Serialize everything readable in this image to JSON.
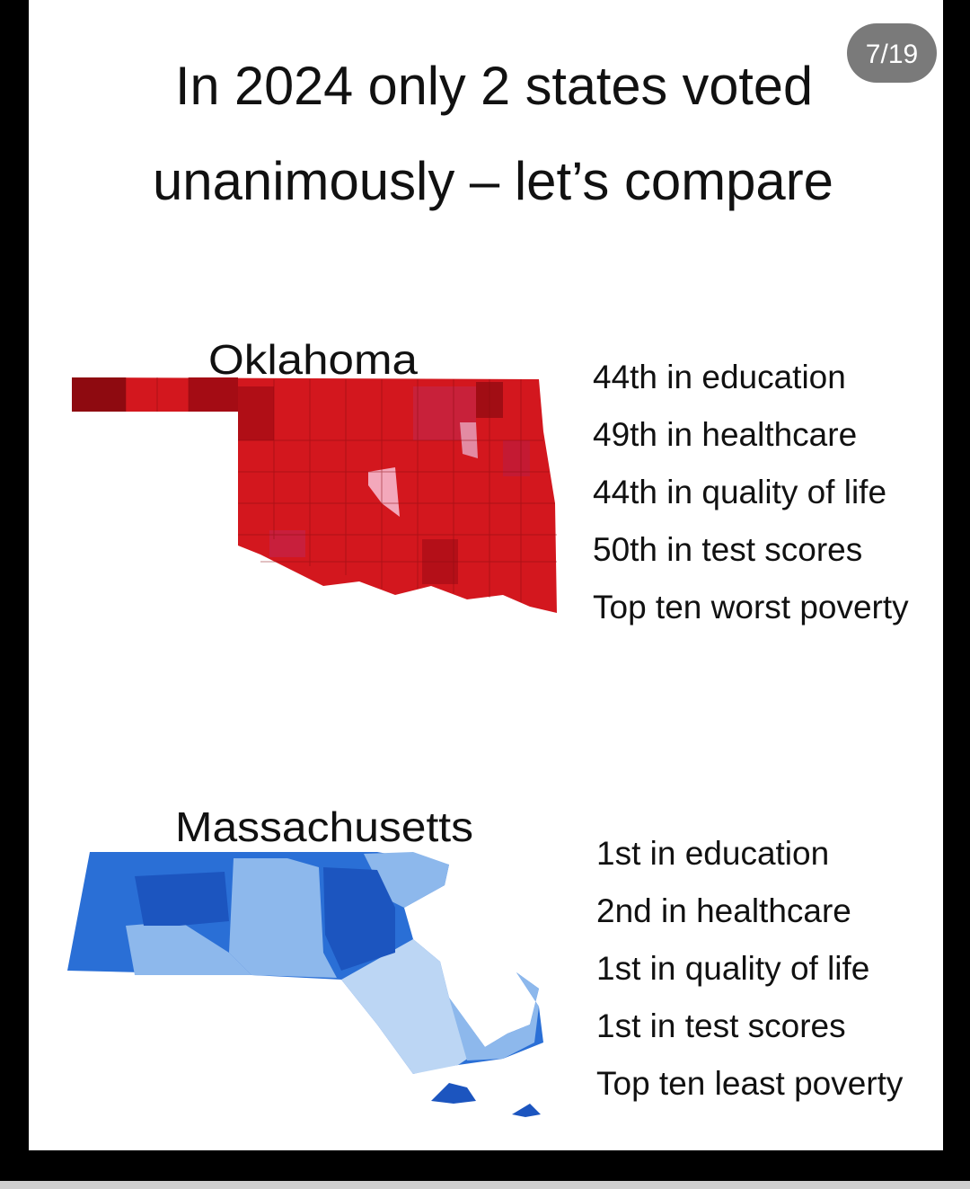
{
  "badge": "7/19",
  "title": {
    "line1": "In 2024 only 2 states voted",
    "line2": "unanimously – let’s compare"
  },
  "states": [
    {
      "name": "Oklahoma",
      "stats": [
        "44th in education",
        "49th in healthcare",
        "44th in quality of life",
        "50th in test scores",
        "Top ten worst poverty"
      ]
    },
    {
      "name": "Massachusetts",
      "stats": [
        "1st in education",
        "2nd in healthcare",
        "1st in quality of life",
        "1st in test scores",
        "Top ten least poverty"
      ]
    }
  ]
}
